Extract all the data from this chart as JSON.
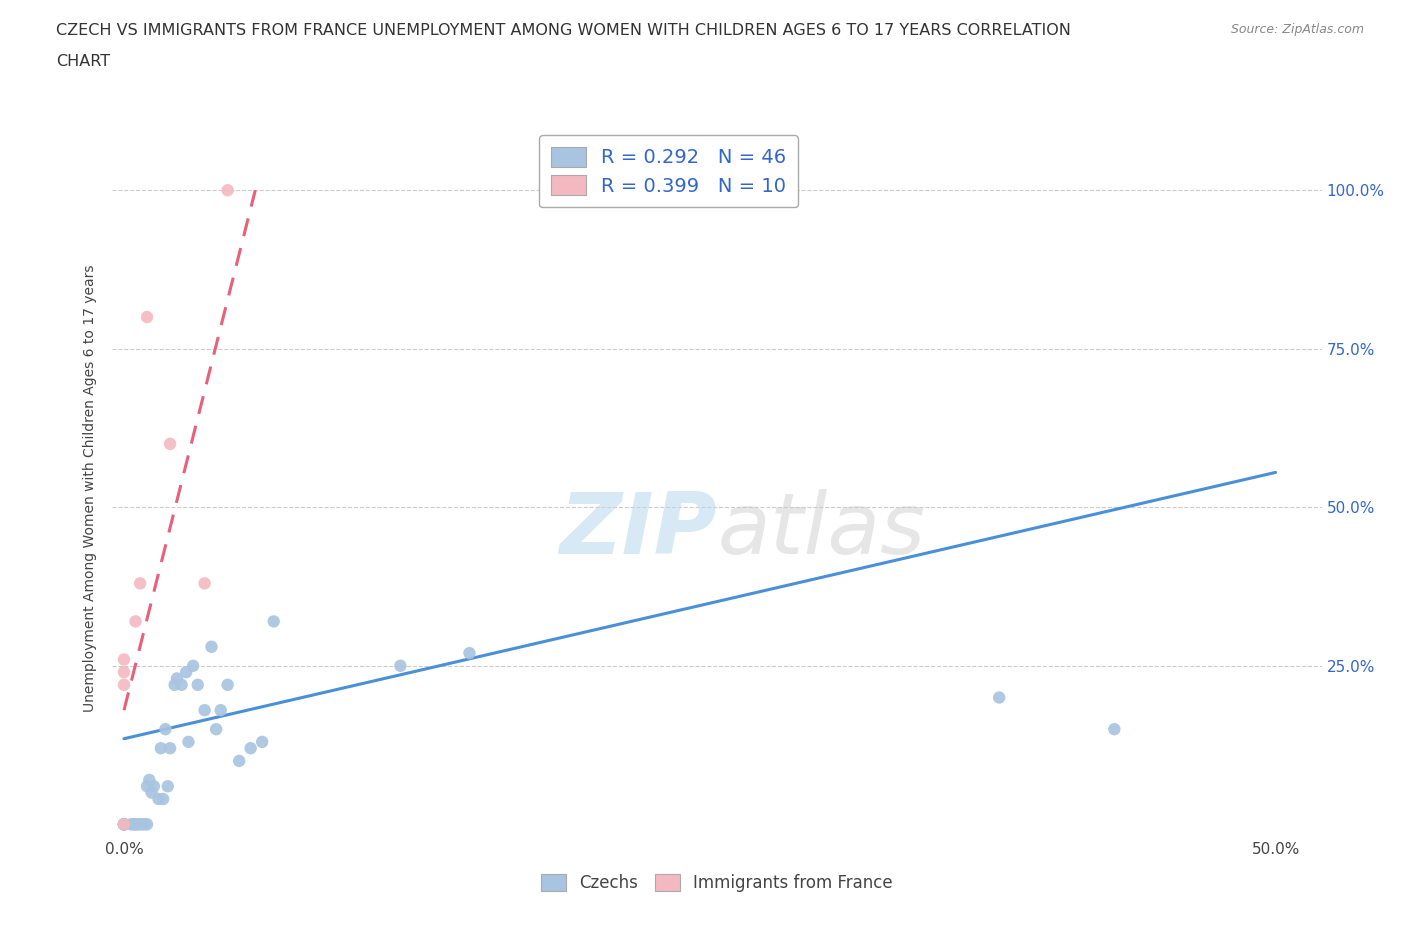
{
  "title_line1": "CZECH VS IMMIGRANTS FROM FRANCE UNEMPLOYMENT AMONG WOMEN WITH CHILDREN AGES 6 TO 17 YEARS CORRELATION",
  "title_line2": "CHART",
  "source": "Source: ZipAtlas.com",
  "ylabel": "Unemployment Among Women with Children Ages 6 to 17 years",
  "xlim": [
    -0.005,
    0.52
  ],
  "ylim": [
    -0.02,
    1.08
  ],
  "xticks": [
    0.0,
    0.1,
    0.2,
    0.3,
    0.4,
    0.5
  ],
  "xticklabels": [
    "0.0%",
    "",
    "",
    "",
    "",
    "50.0%"
  ],
  "ytick_positions": [
    0.25,
    0.5,
    0.75,
    1.0
  ],
  "ytick_labels_right": [
    "25.0%",
    "50.0%",
    "75.0%",
    "100.0%"
  ],
  "czech_color": "#a8c4e0",
  "france_color": "#f4b8c0",
  "czech_line_color": "#4a90d9",
  "france_line_color": "#e8607a",
  "czech_R": 0.292,
  "czech_N": 46,
  "france_R": 0.399,
  "france_N": 10,
  "legend_R_color": "#3366cc",
  "watermark_zip": "ZIP",
  "watermark_atlas": "atlas",
  "czech_scatter_x": [
    0.0,
    0.0,
    0.0,
    0.0,
    0.0,
    0.0,
    0.0,
    0.003,
    0.004,
    0.005,
    0.005,
    0.006,
    0.007,
    0.008,
    0.009,
    0.01,
    0.01,
    0.011,
    0.012,
    0.013,
    0.015,
    0.016,
    0.017,
    0.018,
    0.019,
    0.02,
    0.022,
    0.023,
    0.025,
    0.027,
    0.028,
    0.03,
    0.032,
    0.035,
    0.038,
    0.04,
    0.042,
    0.045,
    0.05,
    0.055,
    0.06,
    0.065,
    0.12,
    0.15,
    0.38,
    0.43
  ],
  "czech_scatter_y": [
    0.0,
    0.0,
    0.0,
    0.0,
    0.0,
    0.0,
    0.0,
    0.0,
    0.0,
    0.0,
    0.0,
    0.0,
    0.0,
    0.0,
    0.0,
    0.0,
    0.06,
    0.07,
    0.05,
    0.06,
    0.04,
    0.12,
    0.04,
    0.15,
    0.06,
    0.12,
    0.22,
    0.23,
    0.22,
    0.24,
    0.13,
    0.25,
    0.22,
    0.18,
    0.28,
    0.15,
    0.18,
    0.22,
    0.1,
    0.12,
    0.13,
    0.32,
    0.25,
    0.27,
    0.2,
    0.15
  ],
  "france_scatter_x": [
    0.0,
    0.0,
    0.0,
    0.0,
    0.005,
    0.007,
    0.01,
    0.02,
    0.035,
    0.045
  ],
  "france_scatter_y": [
    0.0,
    0.22,
    0.24,
    0.26,
    0.32,
    0.38,
    0.8,
    0.6,
    0.38,
    1.0
  ],
  "czech_trend_x": [
    0.0,
    0.5
  ],
  "czech_trend_y": [
    0.135,
    0.555
  ],
  "france_trend_x": [
    0.0,
    0.057
  ],
  "france_trend_y": [
    0.18,
    1.0
  ],
  "background_color": "#ffffff",
  "grid_color": "#cccccc"
}
